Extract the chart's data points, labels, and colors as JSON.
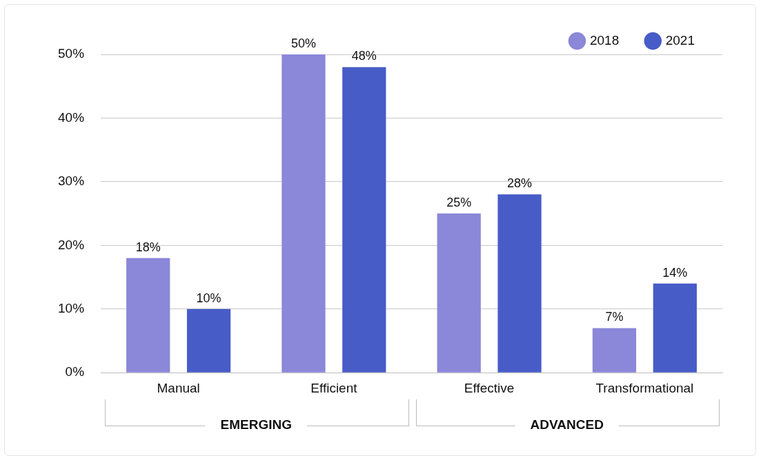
{
  "chart_data": {
    "type": "bar",
    "categories": [
      "Manual",
      "Efficient",
      "Effective",
      "Transformational"
    ],
    "series": [
      {
        "name": "2018",
        "color": "#8b87d9",
        "values": [
          18,
          50,
          25,
          7
        ],
        "value_labels": [
          "18%",
          "50%",
          "25%",
          "7%"
        ]
      },
      {
        "name": "2021",
        "color": "#475cc7",
        "values": [
          10,
          48,
          28,
          14
        ],
        "value_labels": [
          "10%",
          "48%",
          "28%",
          "14%"
        ]
      }
    ],
    "ylim": [
      0,
      50
    ],
    "yticks": [
      {
        "value": 0,
        "label": "0%"
      },
      {
        "value": 10,
        "label": "10%"
      },
      {
        "value": 20,
        "label": "20%"
      },
      {
        "value": 30,
        "label": "30%"
      },
      {
        "value": 40,
        "label": "40%"
      },
      {
        "value": 50,
        "label": "50%"
      }
    ],
    "grid": "y",
    "legend": "top right",
    "annotations": [
      "EMERGING",
      "ADVANCED"
    ]
  }
}
